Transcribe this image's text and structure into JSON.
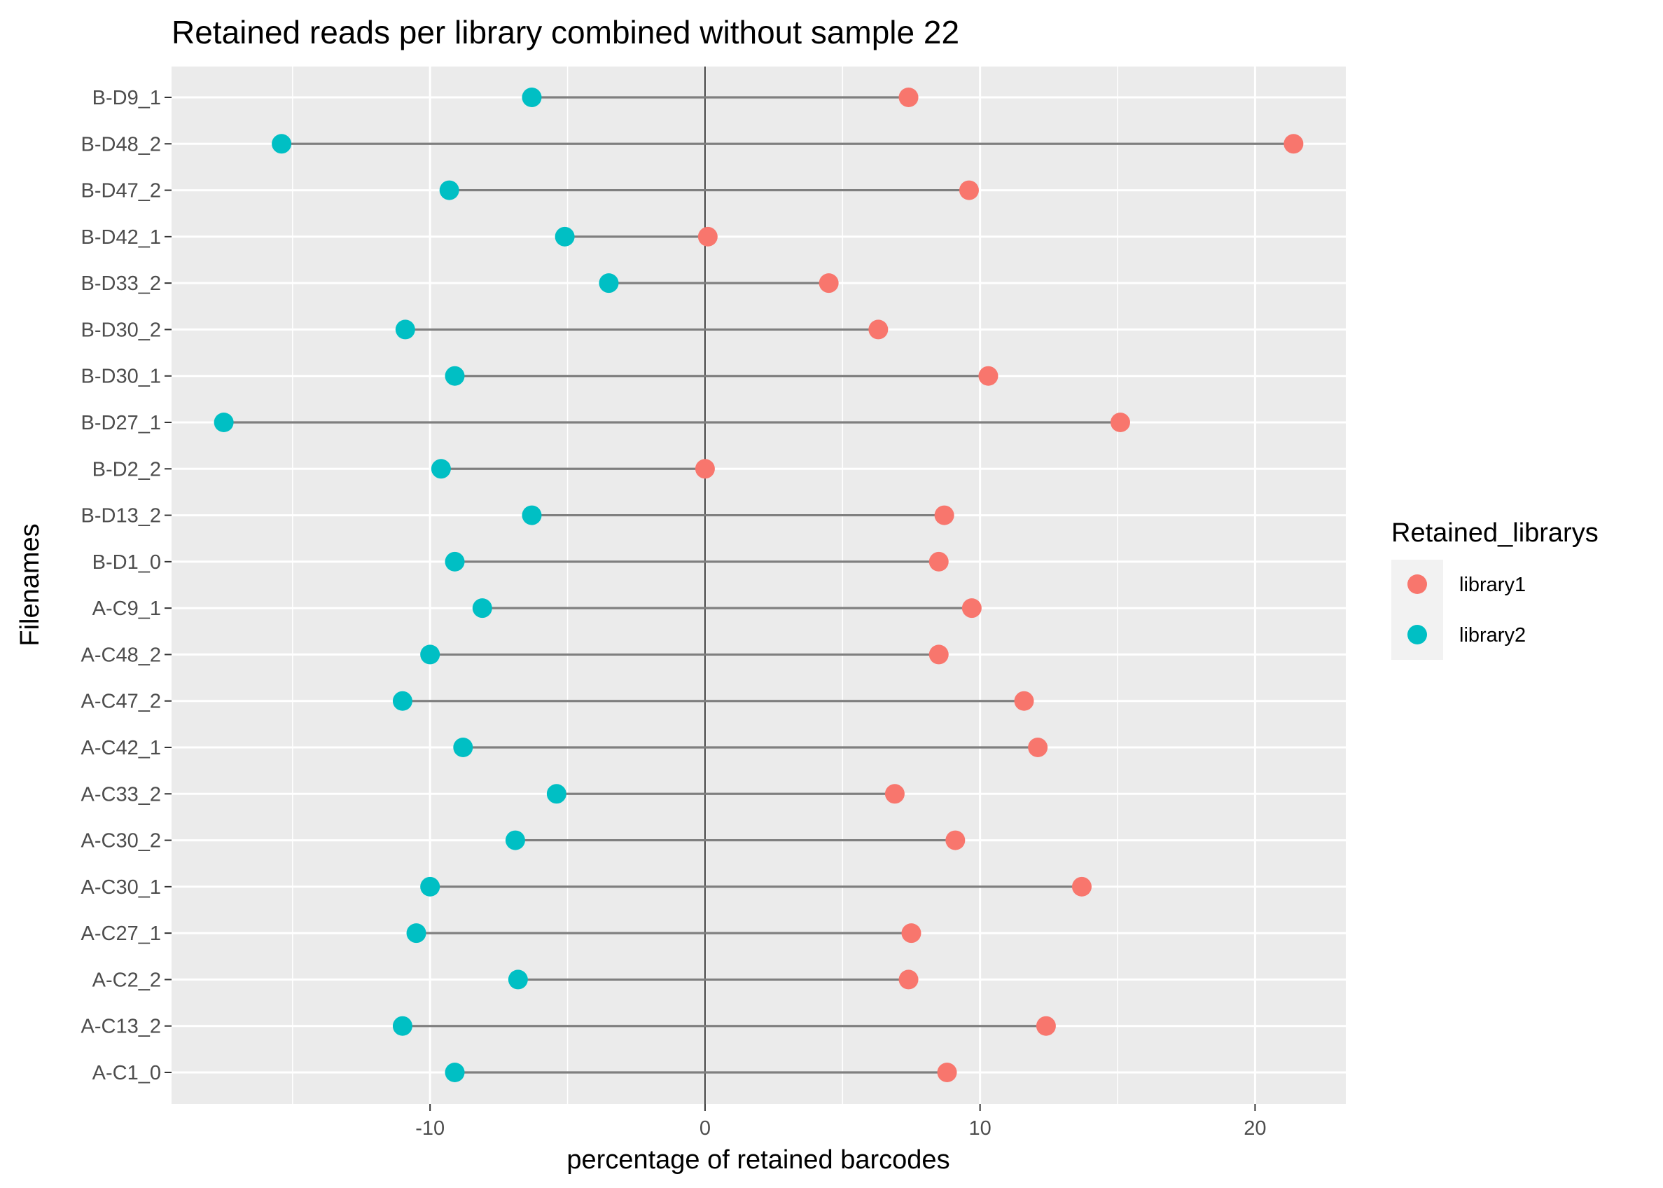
{
  "chart_data": {
    "type": "scatter",
    "subtype": "dumbbell",
    "title": "Retained reads per library combined without sample 22",
    "xlabel": "percentage of retained barcodes",
    "ylabel": "Filenames",
    "xlim": [
      -19.4,
      23.3
    ],
    "x_ticks": [
      -10,
      0,
      10,
      20
    ],
    "x_tick_labels": [
      "-10",
      "0",
      "10",
      "20"
    ],
    "grid": true,
    "reference_line_x": 0,
    "legend": {
      "title": "Retained_librarys",
      "position": "right",
      "entries": [
        {
          "label": "library1",
          "color": "#F8766D"
        },
        {
          "label": "library2",
          "color": "#00BFC4"
        }
      ]
    },
    "categories": [
      "B-D9_1",
      "B-D48_2",
      "B-D47_2",
      "B-D42_1",
      "B-D33_2",
      "B-D30_2",
      "B-D30_1",
      "B-D27_1",
      "B-D2_2",
      "B-D13_2",
      "B-D1_0",
      "A-C9_1",
      "A-C48_2",
      "A-C47_2",
      "A-C42_1",
      "A-C33_2",
      "A-C30_2",
      "A-C30_1",
      "A-C27_1",
      "A-C2_2",
      "A-C13_2",
      "A-C1_0"
    ],
    "series": [
      {
        "name": "library1",
        "color": "#F8766D",
        "values": [
          7.4,
          21.4,
          9.6,
          0.1,
          4.5,
          6.3,
          10.3,
          15.1,
          0.0,
          8.7,
          8.5,
          9.7,
          8.5,
          11.6,
          12.1,
          6.9,
          9.1,
          13.7,
          7.5,
          7.4,
          12.4,
          8.8
        ]
      },
      {
        "name": "library2",
        "color": "#00BFC4",
        "values": [
          -6.3,
          -15.4,
          -9.3,
          -5.1,
          -3.5,
          -10.9,
          -9.1,
          -17.5,
          -9.6,
          -6.3,
          -9.1,
          -8.1,
          -10.0,
          -11.0,
          -8.8,
          -5.4,
          -6.9,
          -10.0,
          -10.5,
          -6.8,
          -11.0,
          -9.1
        ]
      }
    ]
  }
}
